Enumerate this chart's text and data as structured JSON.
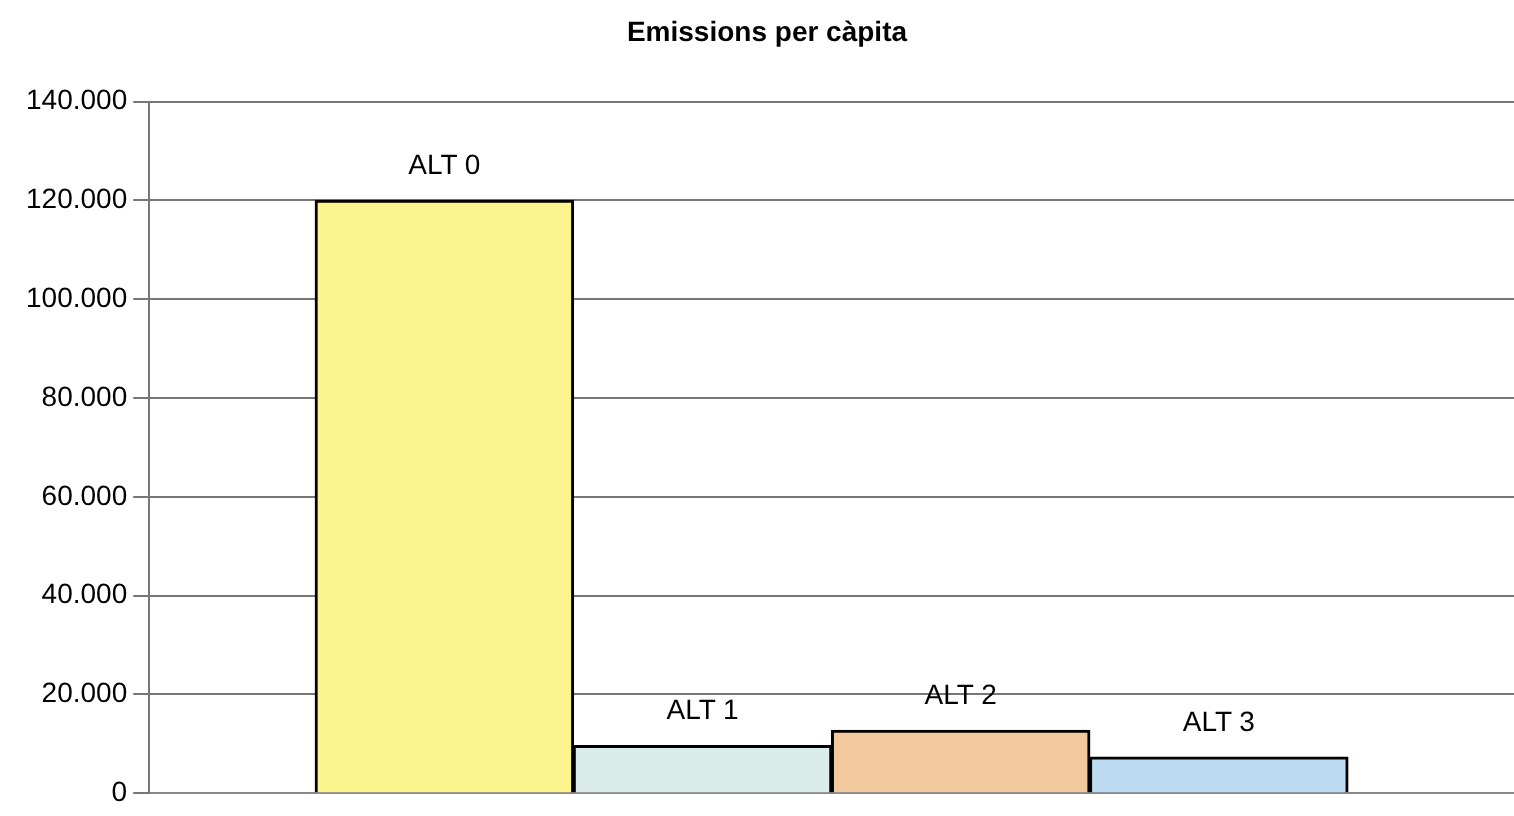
{
  "chart_data": {
    "type": "bar",
    "title": "Emissions per càpita",
    "categories": [
      "ALT 0",
      "ALT 1",
      "ALT 2",
      "ALT 3"
    ],
    "values": [
      120000,
      9600,
      12700,
      7300
    ],
    "colors": [
      "#fbf38c",
      "#d9ece9",
      "#f2c99c",
      "#bcdaf2"
    ],
    "ylim": [
      0,
      140000
    ],
    "yticks": [
      {
        "value": 0,
        "label": "0"
      },
      {
        "value": 20000,
        "label": "20.000"
      },
      {
        "value": 40000,
        "label": "40.000"
      },
      {
        "value": 60000,
        "label": "60.000"
      },
      {
        "value": 80000,
        "label": "80.000"
      },
      {
        "value": 100000,
        "label": "100.000"
      },
      {
        "value": 120000,
        "label": "120.000"
      },
      {
        "value": 140000,
        "label": "140.000"
      }
    ],
    "grid": "y",
    "tick_labels": "y",
    "legend": false
  }
}
